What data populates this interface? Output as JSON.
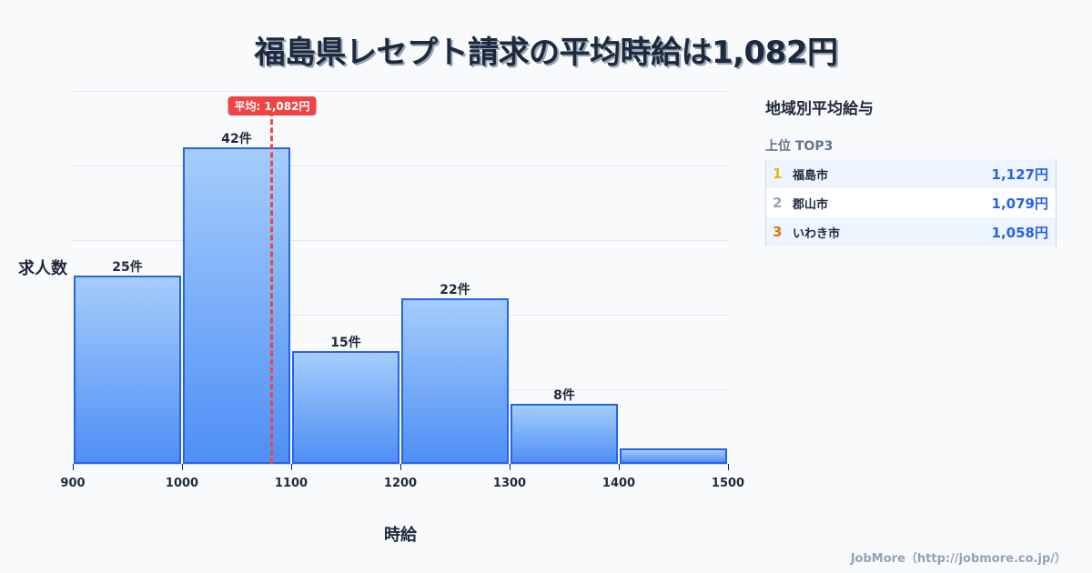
{
  "title": "福島県レセプト請求の平均時給は1,082円",
  "chart_data": {
    "type": "bar",
    "subtype": "histogram",
    "title": "福島県レセプト請求の平均時給は1,082円",
    "xlabel": "時給",
    "ylabel": "求人数",
    "bins": [
      [
        900,
        1000
      ],
      [
        1000,
        1100
      ],
      [
        1100,
        1200
      ],
      [
        1200,
        1300
      ],
      [
        1300,
        1400
      ],
      [
        1400,
        1500
      ]
    ],
    "categories": [
      "900-1000",
      "1000-1100",
      "1100-1200",
      "1200-1300",
      "1300-1400",
      "1400-1500"
    ],
    "values": [
      25,
      42,
      15,
      22,
      8,
      2
    ],
    "value_labels": [
      "25件",
      "42件",
      "15件",
      "22件",
      "8件",
      ""
    ],
    "x_ticks": [
      "900",
      "1000",
      "1100",
      "1200",
      "1300",
      "1400",
      "1500"
    ],
    "xlim": [
      900,
      1500
    ],
    "ylim": [
      0,
      49.5
    ],
    "grid": true,
    "annotations": [
      {
        "type": "vline",
        "x": 1082,
        "label": "平均: 1,082円",
        "color": "#ef4444",
        "style": "dashed"
      }
    ],
    "colors": {
      "bar_border": "#2563eb",
      "bar_top": "#a5cdfb",
      "bar_bottom": "#4f8ff5"
    }
  },
  "chart": {
    "avg_label": "平均: 1,082円",
    "avg_value": 1082,
    "ylabel": "求人数",
    "xlabel": "時給",
    "ticks": [
      "900",
      "1000",
      "1100",
      "1200",
      "1300",
      "1400",
      "1500"
    ],
    "bars": [
      {
        "label": "25件",
        "value": 25
      },
      {
        "label": "42件",
        "value": 42
      },
      {
        "label": "15件",
        "value": 15
      },
      {
        "label": "22件",
        "value": 22
      },
      {
        "label": "8件",
        "value": 8
      },
      {
        "label": "",
        "value": 2
      }
    ]
  },
  "panel": {
    "title": "地域別平均給与",
    "subtitle": "上位 TOP3",
    "rows": [
      {
        "rank": "1",
        "name": "福島市",
        "value": "1,127円",
        "rank_color": "#eab308"
      },
      {
        "rank": "2",
        "name": "郡山市",
        "value": "1,079円",
        "rank_color": "#94a3b8"
      },
      {
        "rank": "3",
        "name": "いわき市",
        "value": "1,058円",
        "rank_color": "#d97706"
      }
    ]
  },
  "footer": "JobMore（http://jobmore.co.jp/）"
}
